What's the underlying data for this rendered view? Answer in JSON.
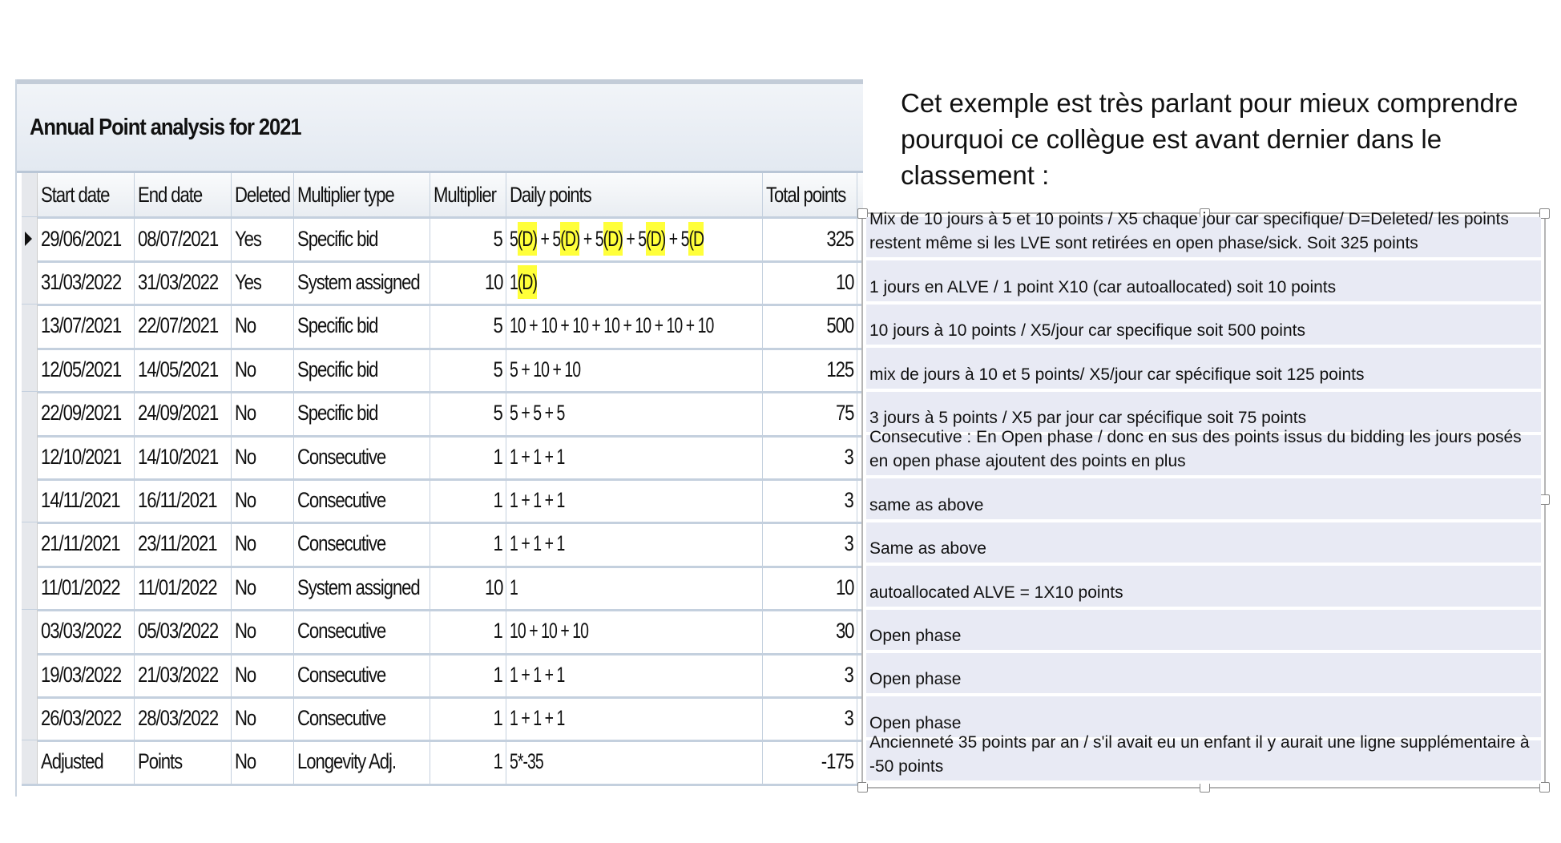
{
  "panel": {
    "title": "Annual Point analysis for 2021",
    "columns": [
      "Start date",
      "End date",
      "Deleted",
      "Multiplier type",
      "Multiplier",
      "Daily points",
      "Total points"
    ],
    "rows": [
      [
        "29/06/2021",
        "08/07/2021",
        "Yes",
        "Specific bid",
        "5",
        "5(D) + 5(D) + 5(D) + 5(D) + 5(D",
        "325"
      ],
      [
        "31/03/2022",
        "31/03/2022",
        "Yes",
        "System assigned",
        "10",
        "1(D)",
        "10"
      ],
      [
        "13/07/2021",
        "22/07/2021",
        "No",
        "Specific bid",
        "5",
        "10 + 10 + 10 + 10 + 10 + 10 + 10",
        "500"
      ],
      [
        "12/05/2021",
        "14/05/2021",
        "No",
        "Specific bid",
        "5",
        "5 + 10 + 10",
        "125"
      ],
      [
        "22/09/2021",
        "24/09/2021",
        "No",
        "Specific bid",
        "5",
        "5 + 5 + 5",
        "75"
      ],
      [
        "12/10/2021",
        "14/10/2021",
        "No",
        "Consecutive",
        "1",
        "1 + 1 + 1",
        "3"
      ],
      [
        "14/11/2021",
        "16/11/2021",
        "No",
        "Consecutive",
        "1",
        "1 + 1 + 1",
        "3"
      ],
      [
        "21/11/2021",
        "23/11/2021",
        "No",
        "Consecutive",
        "1",
        "1 + 1 + 1",
        "3"
      ],
      [
        "11/01/2022",
        "11/01/2022",
        "No",
        "System assigned",
        "10",
        "1",
        "10"
      ],
      [
        "03/03/2022",
        "05/03/2022",
        "No",
        "Consecutive",
        "1",
        "10 + 10 + 10",
        "30"
      ],
      [
        "19/03/2022",
        "21/03/2022",
        "No",
        "Consecutive",
        "1",
        "1 + 1 + 1",
        "3"
      ],
      [
        "26/03/2022",
        "28/03/2022",
        "No",
        "Consecutive",
        "1",
        "1 + 1 + 1",
        "3"
      ],
      [
        "Adjusted",
        "Points",
        "No",
        "Longevity Adj.",
        "1",
        "5*-35",
        "-175"
      ]
    ],
    "highlight_color": "#ffff3a"
  },
  "heading": "Cet exemple est très parlant pour mieux comprendre pourquoi ce collègue est avant dernier dans le classement :",
  "notes": [
    "Mix de 10 jours à 5 et 10 points / X5 chaque jour car specifique/ D=Deleted/ les points restent même si les LVE sont retirées en open phase/sick. Soit 325 points",
    " 1 jours en ALVE / 1 point X10 (car autoallocated) soit 10 points",
    " 10 jours à 10 points / X5/jour car specifique soit 500 points",
    " mix de jours à 10 et 5 points/ X5/jour car spécifique  soit 125 points",
    " 3 jours à 5 points / X5 par jour car spécifique soit 75 points",
    " Consecutive : En Open phase / donc en sus des points issus du bidding les jours posés en open phase ajoutent des points en plus",
    " same as above",
    "Same as above",
    " autoallocated ALVE = 1X10 points",
    " Open phase",
    " Open phase",
    " Open phase",
    " Ancienneté 35 points par an / s'il avait eu un enfant il y aurait une ligne supplémentaire à -50 points"
  ]
}
